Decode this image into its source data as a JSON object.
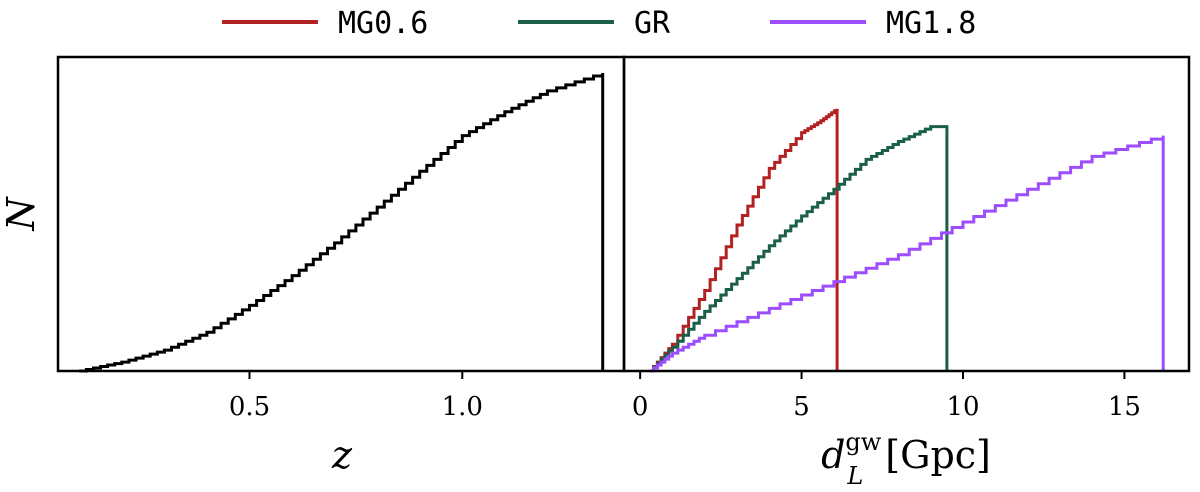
{
  "legend": {
    "entries": [
      {
        "label": "MG0.6",
        "color": "#b22222"
      },
      {
        "label": "GR",
        "color": "#1b5e4a"
      },
      {
        "label": "MG1.8",
        "color": "#9b4dff"
      }
    ]
  },
  "chart_data": [
    {
      "type": "step",
      "xlabel": "z",
      "ylabel": "N",
      "xlim": [
        0.05,
        1.38
      ],
      "ylim": [
        0,
        1.0
      ],
      "xticks": [
        0.5,
        1.0
      ],
      "xtick_labels": [
        "0.5",
        "1.0"
      ],
      "yticks": [],
      "series": [
        {
          "color": "#000000",
          "x": [
            0.1,
            0.2,
            0.3,
            0.4,
            0.5,
            0.6,
            0.7,
            0.8,
            0.9,
            1.0,
            1.1,
            1.2,
            1.33
          ],
          "y": [
            0.0,
            0.03,
            0.07,
            0.13,
            0.22,
            0.32,
            0.43,
            0.55,
            0.67,
            0.79,
            0.87,
            0.94,
            1.0
          ]
        }
      ]
    },
    {
      "type": "step",
      "xlabel": "d_L^gw [Gpc]",
      "ylabel": "",
      "xlim": [
        -0.5,
        17.0
      ],
      "ylim": [
        0,
        1.0
      ],
      "xticks": [
        0,
        5,
        10,
        15
      ],
      "xtick_labels": [
        "0",
        "5",
        "10",
        "15"
      ],
      "yticks": [],
      "series": [
        {
          "name": "MG0.6",
          "color": "#b22222",
          "x": [
            0.3,
            1.0,
            2.0,
            3.0,
            4.0,
            5.0,
            5.6,
            6.1
          ],
          "y": [
            0.0,
            0.09,
            0.27,
            0.49,
            0.68,
            0.8,
            0.84,
            0.88
          ]
        },
        {
          "name": "GR",
          "color": "#1b5e4a",
          "x": [
            0.3,
            1.0,
            2.0,
            3.0,
            4.0,
            5.0,
            6.0,
            7.0,
            8.0,
            9.0,
            9.5
          ],
          "y": [
            0.0,
            0.08,
            0.2,
            0.31,
            0.42,
            0.52,
            0.61,
            0.71,
            0.77,
            0.82,
            0.82
          ]
        },
        {
          "name": "MG1.8",
          "color": "#9b4dff",
          "x": [
            0.3,
            1.0,
            2.0,
            4.0,
            6.0,
            8.0,
            10.0,
            12.0,
            14.0,
            16.2
          ],
          "y": [
            0.0,
            0.06,
            0.12,
            0.21,
            0.3,
            0.39,
            0.5,
            0.61,
            0.72,
            0.79
          ]
        }
      ]
    }
  ]
}
